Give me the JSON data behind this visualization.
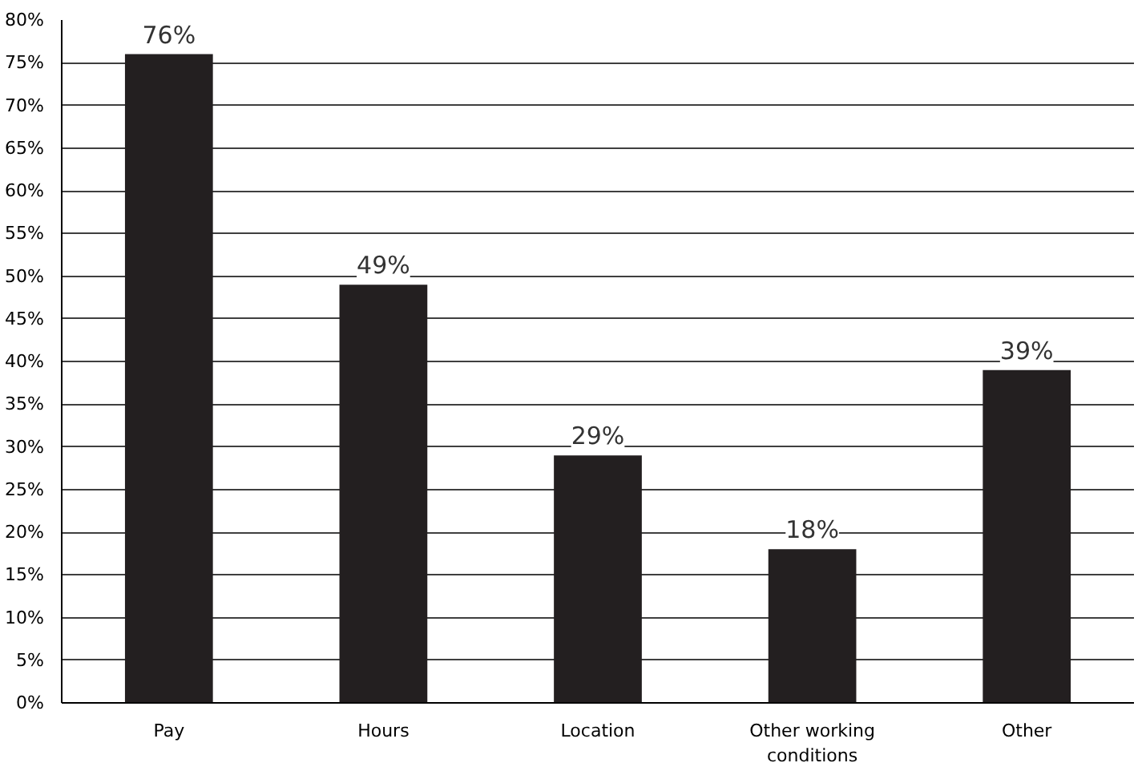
{
  "chart_data": {
    "type": "bar",
    "categories": [
      "Pay",
      "Hours",
      "Location",
      "Other working conditions",
      "Other"
    ],
    "values": [
      76,
      49,
      29,
      18,
      39
    ],
    "value_labels": [
      "76%",
      "49%",
      "29%",
      "18%",
      "39%"
    ],
    "color": "#231f20",
    "ylim": [
      0,
      80
    ],
    "yticks": [
      {
        "value": 0,
        "label": "0%"
      },
      {
        "value": 5,
        "label": "5%"
      },
      {
        "value": 10,
        "label": "10%"
      },
      {
        "value": 15,
        "label": "15%"
      },
      {
        "value": 20,
        "label": "20%"
      },
      {
        "value": 25,
        "label": "25%"
      },
      {
        "value": 30,
        "label": "30%"
      },
      {
        "value": 35,
        "label": "35%"
      },
      {
        "value": 40,
        "label": "40%"
      },
      {
        "value": 45,
        "label": "45%"
      },
      {
        "value": 50,
        "label": "50%"
      },
      {
        "value": 55,
        "label": "55%"
      },
      {
        "value": 60,
        "label": "60%"
      },
      {
        "value": 65,
        "label": "65%"
      },
      {
        "value": 70,
        "label": "70%"
      },
      {
        "value": 75,
        "label": "75%"
      },
      {
        "value": 80,
        "label": "80%"
      }
    ],
    "grid": "y"
  }
}
